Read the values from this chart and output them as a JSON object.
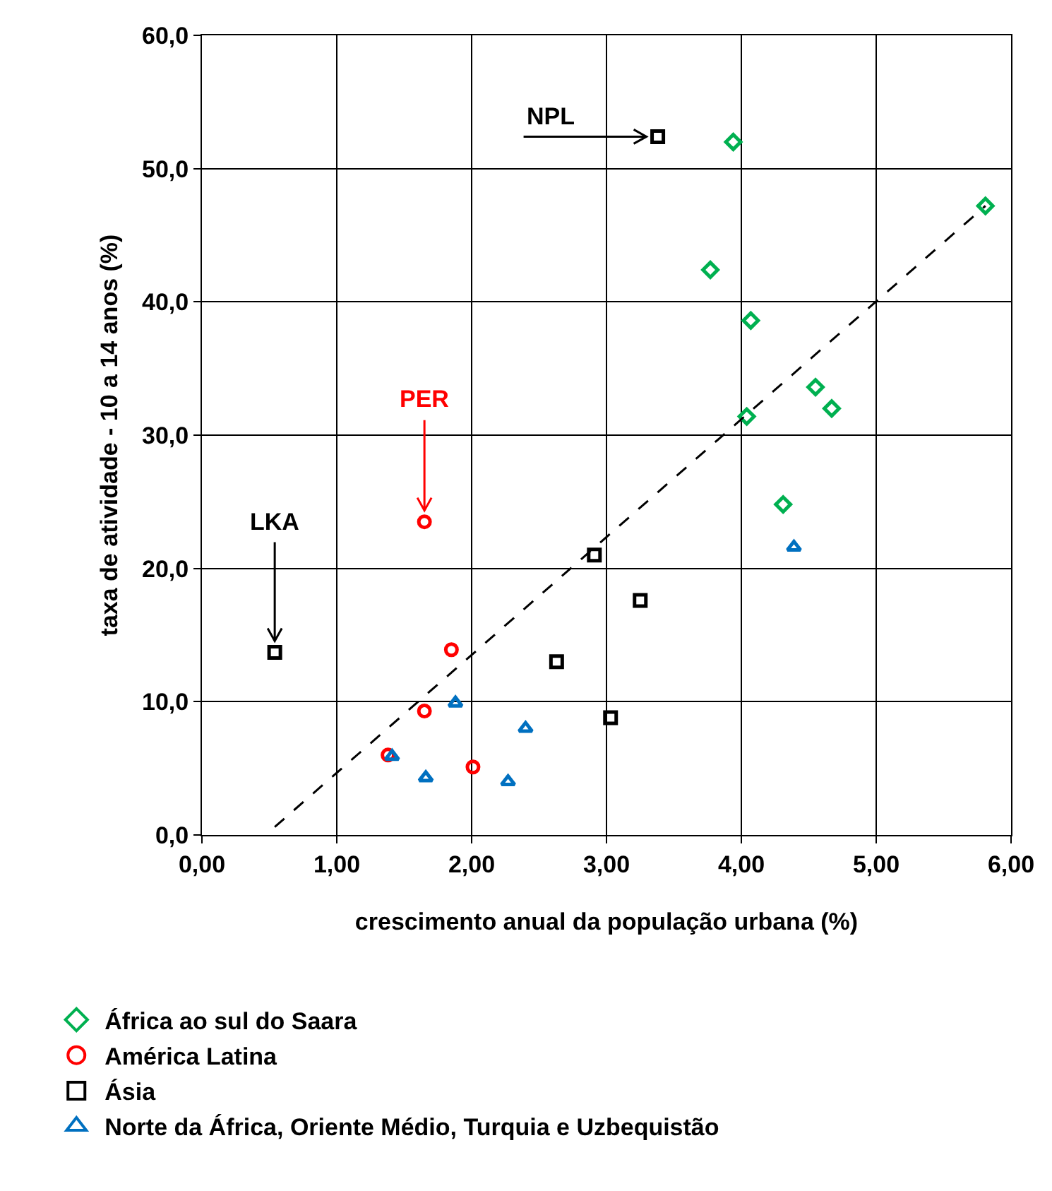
{
  "chart_data": {
    "type": "scatter",
    "xlabel": "crescimento anual da população urbana (%)",
    "ylabel": "taxa de atividade - 10 a 14 anos (%)",
    "xlim": [
      0,
      6
    ],
    "ylim": [
      0,
      60
    ],
    "xticks": [
      {
        "value": 0,
        "label": "0,00"
      },
      {
        "value": 1,
        "label": "1,00"
      },
      {
        "value": 2,
        "label": "2,00"
      },
      {
        "value": 3,
        "label": "3,00"
      },
      {
        "value": 4,
        "label": "4,00"
      },
      {
        "value": 5,
        "label": "5,00"
      },
      {
        "value": 6,
        "label": "6,00"
      }
    ],
    "yticks": [
      {
        "value": 0,
        "label": "0,0"
      },
      {
        "value": 10,
        "label": "10,0"
      },
      {
        "value": 20,
        "label": "20,0"
      },
      {
        "value": 30,
        "label": "30,0"
      },
      {
        "value": 40,
        "label": "40,0"
      },
      {
        "value": 50,
        "label": "50,0"
      },
      {
        "value": 60,
        "label": "60,0"
      }
    ],
    "grid": true,
    "legend": "bottom",
    "series": [
      {
        "name": "África ao sul do Saara",
        "color": "#00b050",
        "marker": "diamond",
        "x": [
          3.94,
          3.77,
          4.07,
          4.04,
          4.55,
          4.67,
          4.31,
          5.81
        ],
        "values": [
          52.0,
          42.4,
          38.6,
          31.4,
          33.6,
          32.0,
          24.8,
          47.2
        ]
      },
      {
        "name": "América Latina",
        "color": "#ff0000",
        "marker": "circle",
        "x": [
          1.65,
          1.85,
          1.65,
          1.38,
          2.01
        ],
        "values": [
          23.5,
          13.9,
          9.3,
          6.0,
          5.1
        ]
      },
      {
        "name": "Ásia",
        "color": "#000000",
        "marker": "square",
        "x": [
          3.38,
          0.54,
          2.91,
          3.25,
          2.63,
          3.03
        ],
        "values": [
          52.4,
          13.7,
          21.0,
          17.6,
          13.0,
          8.8
        ]
      },
      {
        "name": "Norte da África, Oriente Médio, Turquia e Uzbequistão",
        "color": "#0070c0",
        "marker": "triangle",
        "x": [
          1.41,
          1.88,
          1.66,
          2.27,
          2.4,
          4.39
        ],
        "values": [
          5.9,
          9.9,
          4.3,
          4.0,
          8.0,
          21.6
        ]
      },
      {
        "type": "line",
        "color": "#000000",
        "line_style": "dashed",
        "marker": "none",
        "x": [
          0.54,
          5.81
        ],
        "values": [
          0.6,
          47.2
        ]
      }
    ],
    "annotations": [
      {
        "text": "NPL",
        "x": 3.38,
        "y": 52.4
      },
      {
        "text": "LKA",
        "x": 0.54,
        "y": 13.7
      },
      {
        "text": "PER",
        "x": 1.65,
        "y": 23.5
      }
    ]
  }
}
